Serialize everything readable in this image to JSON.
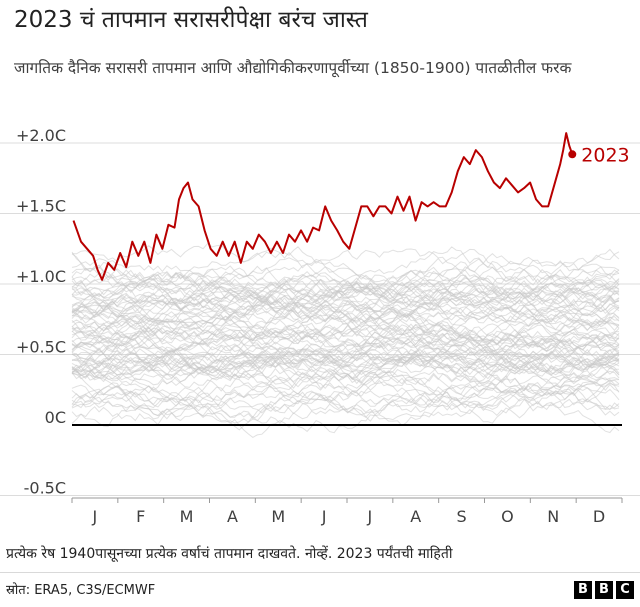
{
  "header": {
    "title": "2023 चं तापमान सरासरीपेक्षा बरंच जास्त",
    "subtitle": "जागतिक दैनिक सरासरी तापमान आणि औद्योगिकीकरणापूर्वीच्या (1850-1900) पातळीतील फरक"
  },
  "footer": {
    "note": "प्रत्येक रेष 1940पासूनच्या प्रत्येक वर्षाचं तापमान दाखवते. नोव्हें. 2023 पर्यंतची माहिती",
    "source": "स्रोत: ERA5, C3S/ECMWF",
    "logo_letters": [
      "B",
      "B",
      "C"
    ]
  },
  "colors": {
    "highlight": "#b80000",
    "background_years": "#c8c8c8",
    "gridline": "#dcdcdc",
    "zero_line": "#000000"
  },
  "chart_data": {
    "type": "line",
    "x_labels": [
      "J",
      "F",
      "M",
      "A",
      "M",
      "J",
      "J",
      "A",
      "S",
      "O",
      "N",
      "D"
    ],
    "y_ticks": [
      -0.5,
      0,
      0.5,
      1.0,
      1.5,
      2.0
    ],
    "y_tick_labels": [
      "-0.5C",
      "0C",
      "+0.5C",
      "+1.0C",
      "+1.5C",
      "+2.0C"
    ],
    "ylim": [
      -0.5,
      2.1
    ],
    "highlight_series": {
      "name": "2023",
      "label": "2023",
      "points": [
        [
          1,
          1.45
        ],
        [
          6,
          1.3
        ],
        [
          10,
          1.25
        ],
        [
          14,
          1.2
        ],
        [
          17,
          1.1
        ],
        [
          20,
          1.03
        ],
        [
          24,
          1.15
        ],
        [
          28,
          1.1
        ],
        [
          32,
          1.22
        ],
        [
          36,
          1.12
        ],
        [
          40,
          1.3
        ],
        [
          44,
          1.2
        ],
        [
          48,
          1.3
        ],
        [
          52,
          1.15
        ],
        [
          56,
          1.35
        ],
        [
          60,
          1.25
        ],
        [
          64,
          1.42
        ],
        [
          68,
          1.4
        ],
        [
          71,
          1.6
        ],
        [
          74,
          1.68
        ],
        [
          77,
          1.72
        ],
        [
          80,
          1.6
        ],
        [
          84,
          1.55
        ],
        [
          88,
          1.38
        ],
        [
          92,
          1.25
        ],
        [
          96,
          1.2
        ],
        [
          100,
          1.3
        ],
        [
          104,
          1.2
        ],
        [
          108,
          1.3
        ],
        [
          112,
          1.15
        ],
        [
          116,
          1.3
        ],
        [
          120,
          1.25
        ],
        [
          124,
          1.35
        ],
        [
          128,
          1.3
        ],
        [
          132,
          1.22
        ],
        [
          136,
          1.3
        ],
        [
          140,
          1.22
        ],
        [
          144,
          1.35
        ],
        [
          148,
          1.3
        ],
        [
          152,
          1.38
        ],
        [
          156,
          1.3
        ],
        [
          160,
          1.4
        ],
        [
          164,
          1.38
        ],
        [
          168,
          1.55
        ],
        [
          172,
          1.45
        ],
        [
          176,
          1.38
        ],
        [
          180,
          1.3
        ],
        [
          184,
          1.25
        ],
        [
          188,
          1.4
        ],
        [
          192,
          1.55
        ],
        [
          196,
          1.55
        ],
        [
          200,
          1.48
        ],
        [
          204,
          1.55
        ],
        [
          208,
          1.55
        ],
        [
          212,
          1.5
        ],
        [
          216,
          1.62
        ],
        [
          220,
          1.52
        ],
        [
          224,
          1.62
        ],
        [
          228,
          1.45
        ],
        [
          232,
          1.58
        ],
        [
          236,
          1.55
        ],
        [
          240,
          1.58
        ],
        [
          244,
          1.55
        ],
        [
          248,
          1.55
        ],
        [
          252,
          1.65
        ],
        [
          256,
          1.8
        ],
        [
          260,
          1.9
        ],
        [
          264,
          1.85
        ],
        [
          268,
          1.95
        ],
        [
          272,
          1.9
        ],
        [
          276,
          1.8
        ],
        [
          280,
          1.72
        ],
        [
          284,
          1.68
        ],
        [
          288,
          1.75
        ],
        [
          292,
          1.7
        ],
        [
          296,
          1.65
        ],
        [
          300,
          1.68
        ],
        [
          304,
          1.72
        ],
        [
          308,
          1.6
        ],
        [
          312,
          1.55
        ],
        [
          316,
          1.55
        ],
        [
          320,
          1.7
        ],
        [
          324,
          1.85
        ],
        [
          326,
          1.95
        ],
        [
          328,
          2.07
        ],
        [
          330,
          1.98
        ],
        [
          332,
          1.92
        ]
      ]
    },
    "background_series_count": 83
  }
}
